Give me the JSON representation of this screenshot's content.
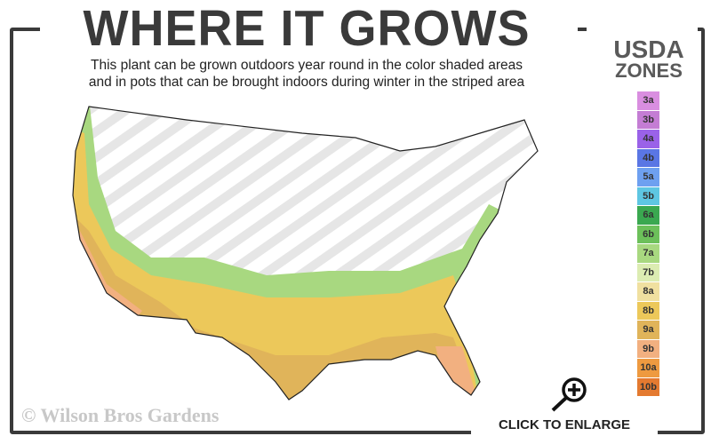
{
  "header": {
    "title": "WHERE IT GROWS",
    "subtitle_line1": "This plant can be grown outdoors year round in the color shaded areas",
    "subtitle_line2": "and in pots that can be brought indoors during winter in the striped area"
  },
  "legend": {
    "title_line1": "USDA",
    "title_line2": "ZONES",
    "zones": [
      {
        "label": "3a",
        "color": "#d98ee0"
      },
      {
        "label": "3b",
        "color": "#c47dd4"
      },
      {
        "label": "4a",
        "color": "#9a62e8"
      },
      {
        "label": "4b",
        "color": "#5a76e4"
      },
      {
        "label": "5a",
        "color": "#6ea0f0"
      },
      {
        "label": "5b",
        "color": "#5ec6e2"
      },
      {
        "label": "6a",
        "color": "#3aa850"
      },
      {
        "label": "6b",
        "color": "#6cc05a"
      },
      {
        "label": "7a",
        "color": "#a8d880"
      },
      {
        "label": "7b",
        "color": "#dcecb2"
      },
      {
        "label": "8a",
        "color": "#f0e0a0"
      },
      {
        "label": "8b",
        "color": "#ecc85a"
      },
      {
        "label": "9a",
        "color": "#e0b45a"
      },
      {
        "label": "9b",
        "color": "#f2b080"
      },
      {
        "label": "10a",
        "color": "#ee9a40"
      },
      {
        "label": "10b",
        "color": "#e47a30"
      }
    ]
  },
  "footer": {
    "copyright": "© Wilson Bros Gardens",
    "enlarge_label": "CLICK TO ENLARGE",
    "enlarge_icon": "magnifier-plus-icon"
  }
}
